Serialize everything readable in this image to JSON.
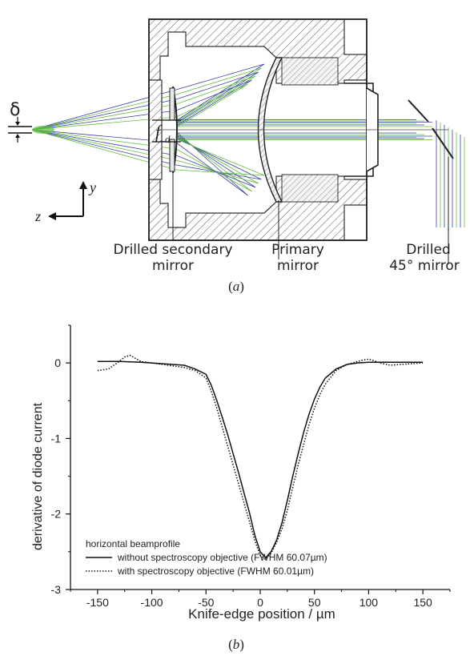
{
  "panel_a": {
    "delta_symbol": "δ",
    "fd_symbol": "f",
    "fd_subscript": "d",
    "axis_y": "y",
    "axis_z": "z",
    "label_secondary_line1": "Drilled secondary",
    "label_secondary_line2": "mirror",
    "label_primary_line1": "Primary",
    "label_primary_line2": "mirror",
    "label_45_line1": "Drilled",
    "label_45_line2": "45° mirror",
    "caption_open": "(",
    "caption_letter": "a",
    "caption_close": ")",
    "ray_colors": [
      "#3b3fa8",
      "#5fbf3a"
    ]
  },
  "chart_data": {
    "type": "line",
    "title": "",
    "xlabel": "Knife-edge position / µm",
    "ylabel": "derivative of diode current",
    "xlim": [
      -175,
      175
    ],
    "ylim": [
      -3,
      0.5
    ],
    "xticks": [
      -150,
      -100,
      -50,
      0,
      50,
      100,
      150
    ],
    "yticks": [
      0,
      -1,
      -2,
      -3
    ],
    "legend": {
      "title": "horizontal beamprofile",
      "placement": "bottom-left"
    },
    "series": [
      {
        "name": "without spectroscopy objective (FWHM 60.07µm)",
        "style": "solid",
        "x": [
          -150,
          -130,
          -110,
          -90,
          -70,
          -60,
          -50,
          -45,
          -40,
          -35,
          -30,
          -25,
          -20,
          -15,
          -10,
          -5,
          0,
          5,
          10,
          15,
          20,
          25,
          30,
          35,
          40,
          45,
          50,
          55,
          60,
          70,
          80,
          90,
          100,
          110,
          130,
          150
        ],
        "y": [
          0.02,
          0.02,
          0.01,
          -0.01,
          -0.03,
          -0.08,
          -0.15,
          -0.3,
          -0.5,
          -0.72,
          -0.95,
          -1.2,
          -1.45,
          -1.72,
          -1.98,
          -2.28,
          -2.5,
          -2.58,
          -2.5,
          -2.35,
          -2.12,
          -1.82,
          -1.5,
          -1.2,
          -0.92,
          -0.68,
          -0.48,
          -0.32,
          -0.2,
          -0.08,
          -0.02,
          0.0,
          0.01,
          0.01,
          0.01,
          0.01
        ]
      },
      {
        "name": "with spectroscopy objective (FWHM 60.01µm)",
        "style": "dotted",
        "x": [
          -150,
          -140,
          -130,
          -125,
          -120,
          -115,
          -110,
          -100,
          -90,
          -80,
          -70,
          -60,
          -50,
          -45,
          -40,
          -35,
          -30,
          -25,
          -20,
          -15,
          -10,
          -5,
          0,
          5,
          10,
          15,
          20,
          25,
          30,
          35,
          40,
          45,
          50,
          55,
          60,
          70,
          80,
          90,
          95,
          100,
          105,
          110,
          120,
          130,
          150
        ],
        "y": [
          -0.1,
          -0.08,
          0.02,
          0.08,
          0.1,
          0.06,
          0.02,
          0.0,
          -0.02,
          -0.04,
          -0.06,
          -0.1,
          -0.2,
          -0.38,
          -0.6,
          -0.85,
          -1.1,
          -1.35,
          -1.6,
          -1.85,
          -2.1,
          -2.35,
          -2.55,
          -2.6,
          -2.52,
          -2.38,
          -2.2,
          -1.95,
          -1.65,
          -1.35,
          -1.08,
          -0.82,
          -0.6,
          -0.42,
          -0.28,
          -0.1,
          -0.02,
          0.02,
          0.04,
          0.05,
          0.03,
          0.0,
          -0.03,
          -0.02,
          0.0
        ]
      }
    ]
  },
  "panel_b": {
    "caption_open": "(",
    "caption_letter": "b",
    "caption_close": ")"
  }
}
